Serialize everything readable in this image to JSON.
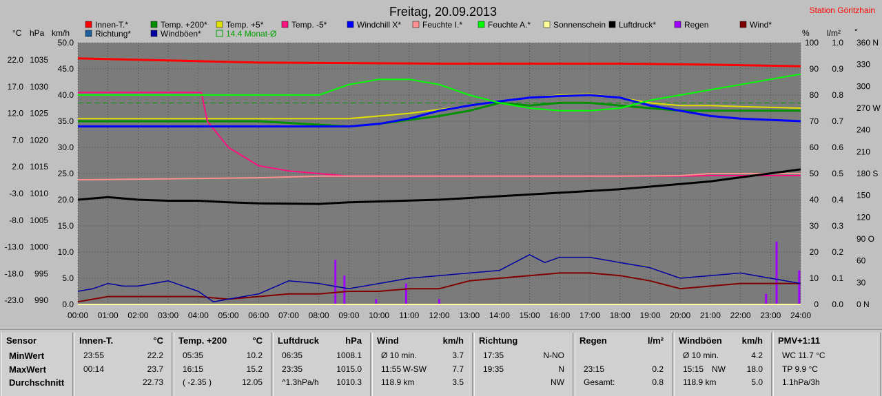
{
  "chart_data": {
    "type": "line",
    "title": "Freitag, 20.09.2013",
    "station": "Station Göritzhain",
    "x_ticks": [
      "00:00",
      "01:00",
      "02:00",
      "03:00",
      "04:00",
      "05:00",
      "06:00",
      "07:00",
      "08:00",
      "09:00",
      "10:00",
      "11:00",
      "12:00",
      "13:00",
      "14:00",
      "15:00",
      "16:00",
      "17:00",
      "18:00",
      "19:00",
      "20:00",
      "21:00",
      "22:00",
      "23:00",
      "24:00"
    ],
    "axis_units": {
      "celsius": "°C",
      "hpa": "hPa",
      "kmh": "km/h",
      "pct": "%",
      "rain": "l/m²",
      "deg": "°"
    },
    "axes": {
      "celsius": [
        "22.0",
        "17.0",
        "12.0",
        "7.0",
        "2.0",
        "-3.0",
        "-8.0",
        "-13.0",
        "-18.0",
        "-23.0"
      ],
      "hpa": [
        "1035",
        "1030",
        "1025",
        "1020",
        "1015",
        "1010",
        "1005",
        "1000",
        "995",
        "990"
      ],
      "kmh": [
        "50.0",
        "45.0",
        "40.0",
        "35.0",
        "30.0",
        "25.0",
        "20.0",
        "15.0",
        "10.0",
        "5.0",
        "0.0"
      ],
      "pct": [
        "100",
        "90",
        "80",
        "70",
        "60",
        "50",
        "40",
        "30",
        "20",
        "10",
        "0"
      ],
      "rain": [
        "1.0",
        "0.9",
        "0.8",
        "0.7",
        "0.6",
        "0.5",
        "0.4",
        "0.3",
        "0.2",
        "0.1",
        "0.0"
      ],
      "deg": [
        "360 N",
        "330",
        "300",
        "270 W",
        "240",
        "210",
        "180 S",
        "150",
        "120",
        "90 O",
        "60",
        "30",
        "0 N"
      ]
    },
    "legend": [
      {
        "name": "Innen-T.*",
        "color": "#ff0000"
      },
      {
        "name": "Temp. +200*",
        "color": "#009000"
      },
      {
        "name": "Temp. +5*",
        "color": "#e0e000"
      },
      {
        "name": "Temp. -5*",
        "color": "#ff1080"
      },
      {
        "name": "Windchill X*",
        "color": "#0000ff"
      },
      {
        "name": "Feuchte I.*",
        "color": "#ff9090"
      },
      {
        "name": "Feuchte A.*",
        "color": "#00ff00"
      },
      {
        "name": "Sonnenschein",
        "color": "#ffff99"
      },
      {
        "name": "Luftdruck*",
        "color": "#000000"
      },
      {
        "name": "Regen",
        "color": "#a000ff"
      },
      {
        "name": "Wind*",
        "color": "#800000"
      },
      {
        "name": "Richtung*",
        "color": "#2060a0"
      },
      {
        "name": "Windböen*",
        "color": "#0000a0"
      },
      {
        "name": "14.4 Monat-Ø",
        "color": "#00a000"
      }
    ],
    "series": [
      {
        "name": "Innen-T.*",
        "axis": "kmh",
        "x": [
          0,
          3,
          6,
          9,
          12,
          15,
          18,
          21,
          24
        ],
        "y": [
          47,
          46.6,
          46.2,
          46.1,
          46,
          46,
          46,
          45.8,
          45.5
        ]
      },
      {
        "name": "Temp. +200*",
        "axis": "kmh",
        "x": [
          0,
          6,
          9,
          10,
          12,
          13,
          14,
          15,
          16,
          17,
          18,
          19,
          20,
          21,
          22,
          24
        ],
        "y": [
          35,
          35,
          34,
          34.5,
          36,
          37,
          38.5,
          38,
          38.5,
          38.5,
          38,
          37.5,
          37,
          37,
          37,
          37
        ]
      },
      {
        "name": "Temp. +5*",
        "axis": "kmh",
        "x": [
          0,
          6,
          9,
          11,
          13,
          15,
          16,
          17,
          18,
          19,
          20,
          21,
          22,
          24
        ],
        "y": [
          35.5,
          35.5,
          35.5,
          36.5,
          38,
          39.5,
          40,
          40.2,
          39.5,
          38.5,
          38,
          38,
          37.8,
          37.5
        ]
      },
      {
        "name": "Temp. -5*",
        "axis": "kmh",
        "x": [
          0,
          4.1,
          4.3,
          5,
          6,
          7,
          8,
          9,
          12,
          18,
          20,
          21,
          24
        ],
        "y": [
          40.5,
          40.5,
          35,
          30,
          26.5,
          25.5,
          25,
          24.5,
          24.5,
          24.5,
          24.5,
          24.6,
          24.6
        ]
      },
      {
        "name": "Windchill X*",
        "axis": "kmh",
        "x": [
          0,
          3,
          6,
          8,
          9,
          10,
          11,
          12,
          13,
          14,
          15,
          16,
          17,
          18,
          19,
          20,
          21,
          22,
          24
        ],
        "y": [
          34,
          34,
          34,
          34,
          34,
          34.5,
          35.5,
          37,
          38,
          38.8,
          39.5,
          39.8,
          40,
          39.5,
          38,
          37,
          36,
          35.5,
          35
        ]
      },
      {
        "name": "Feuchte I.*",
        "axis": "kmh",
        "x": [
          0,
          3,
          6,
          8,
          9,
          12,
          15,
          18,
          20,
          21,
          24
        ],
        "y": [
          23.8,
          24,
          24.2,
          24.5,
          24.5,
          24.5,
          24.5,
          24.5,
          24.6,
          25,
          25
        ]
      },
      {
        "name": "Feuchte A.*",
        "axis": "kmh",
        "x": [
          0,
          3,
          6,
          8,
          9,
          10,
          11,
          12,
          13,
          14,
          15,
          16,
          17,
          18,
          19,
          20,
          21,
          22,
          23,
          24
        ],
        "y": [
          40,
          40,
          40,
          40,
          42,
          43,
          43,
          42,
          40,
          38.5,
          37.5,
          37,
          37,
          37.5,
          39,
          40,
          41,
          42,
          43,
          44
        ]
      },
      {
        "name": "Sonnenschein",
        "axis": "kmh",
        "x": [
          0,
          24
        ],
        "y": [
          0,
          0
        ]
      },
      {
        "name": "Luftdruck*",
        "axis": "kmh",
        "x": [
          0,
          1,
          2,
          3,
          4,
          5,
          6,
          8,
          9,
          12,
          15,
          18,
          21,
          24
        ],
        "y": [
          20,
          20.5,
          20,
          19.8,
          19.8,
          19.5,
          19.3,
          19.2,
          19.5,
          20,
          21,
          22,
          23.5,
          25.8
        ]
      },
      {
        "name": "Wind*",
        "axis": "kmh",
        "x": [
          0,
          1,
          2,
          3,
          4,
          5,
          6,
          7,
          8,
          9,
          10,
          11,
          12,
          13,
          14,
          15,
          16,
          17,
          18,
          19,
          20,
          21,
          22,
          23,
          24
        ],
        "y": [
          0.5,
          1.5,
          1.5,
          1.5,
          1.5,
          1,
          1.5,
          2,
          2,
          2.5,
          2.5,
          3,
          3,
          4.5,
          5,
          5.5,
          6,
          6,
          5.5,
          4.5,
          3,
          3.5,
          4,
          4,
          4
        ]
      },
      {
        "name": "Windböen*",
        "axis": "kmh",
        "x": [
          0,
          0.5,
          1,
          1.5,
          2,
          2.5,
          3,
          3.5,
          4,
          4.5,
          5,
          6,
          7,
          8,
          9,
          10,
          11,
          12,
          13,
          14,
          15,
          15.5,
          16,
          17,
          18,
          19,
          20,
          21,
          22,
          23,
          24
        ],
        "y": [
          2.5,
          3,
          4,
          3.5,
          3.5,
          4,
          4.5,
          3.5,
          2.5,
          0.5,
          1,
          2,
          4.5,
          4,
          3,
          4,
          5,
          5.5,
          6,
          6.5,
          9.5,
          8,
          9,
          9,
          8,
          7,
          5,
          5.5,
          6,
          5,
          4
        ]
      }
    ],
    "monthly_avg": {
      "label": "14.4 Monat-Ø",
      "value_kmh": 38.5
    },
    "rain_bars": [
      {
        "x": 8.55,
        "value": 0.17
      },
      {
        "x": 8.85,
        "value": 0.11
      },
      {
        "x": 9.9,
        "value": 0.02
      },
      {
        "x": 10.9,
        "value": 0.08
      },
      {
        "x": 12.0,
        "value": 0.02
      },
      {
        "x": 22.85,
        "value": 0.04
      },
      {
        "x": 23.2,
        "value": 0.24
      },
      {
        "x": 23.95,
        "value": 0.13
      }
    ]
  },
  "panel": {
    "row_labels": {
      "header": "Sensor",
      "min": "MinWert",
      "max": "MaxWert",
      "avg": "Durchschnitt"
    },
    "columns": [
      {
        "title": "Innen-T.",
        "unit": "°C",
        "rows": [
          [
            "23:55",
            "",
            "22.2"
          ],
          [
            "00:14",
            "",
            "23.7"
          ],
          [
            "",
            "",
            "22.73"
          ]
        ]
      },
      {
        "title": "Temp. +200",
        "unit": "°C",
        "rows": [
          [
            "05:35",
            "",
            "10.2"
          ],
          [
            "16:15",
            "",
            "15.2"
          ],
          [
            "( -2.35 )",
            "",
            "12.05"
          ]
        ]
      },
      {
        "title": "Luftdruck",
        "unit": "hPa",
        "rows": [
          [
            "06:35",
            "",
            "1008.1"
          ],
          [
            "23:35",
            "",
            "1015.0"
          ],
          [
            "^1.3hPa/h",
            "",
            "1010.3"
          ]
        ]
      },
      {
        "title": "Wind",
        "unit": "km/h",
        "rows": [
          [
            "Ø 10 min.",
            "",
            "3.7"
          ],
          [
            "11:55",
            "W-SW",
            "7.7"
          ],
          [
            "118.9 km",
            "",
            "3.5"
          ]
        ]
      },
      {
        "title": "Richtung",
        "unit": "",
        "rows": [
          [
            "17:35",
            "",
            "N-NO"
          ],
          [
            "19:35",
            "",
            "N"
          ],
          [
            "",
            "",
            "NW"
          ]
        ]
      },
      {
        "title": "Regen",
        "unit": "l/m²",
        "rows": [
          [
            "",
            "",
            ""
          ],
          [
            "23:15",
            "",
            "0.2"
          ],
          [
            "Gesamt:",
            "",
            "0.8"
          ]
        ]
      },
      {
        "title": "Windböen",
        "unit": "km/h",
        "rows": [
          [
            "Ø 10 min.",
            "",
            "4.2"
          ],
          [
            "15:15",
            "NW",
            "18.0"
          ],
          [
            "118.9 km",
            "",
            "5.0"
          ]
        ]
      },
      {
        "title": "PMV+1:11",
        "unit": "",
        "rows": [
          [
            "WC 11.7 °C",
            "",
            ""
          ],
          [
            "TP 9.9 °C",
            "",
            ""
          ],
          [
            "1.1hPa/3h",
            "",
            ""
          ]
        ]
      }
    ]
  }
}
